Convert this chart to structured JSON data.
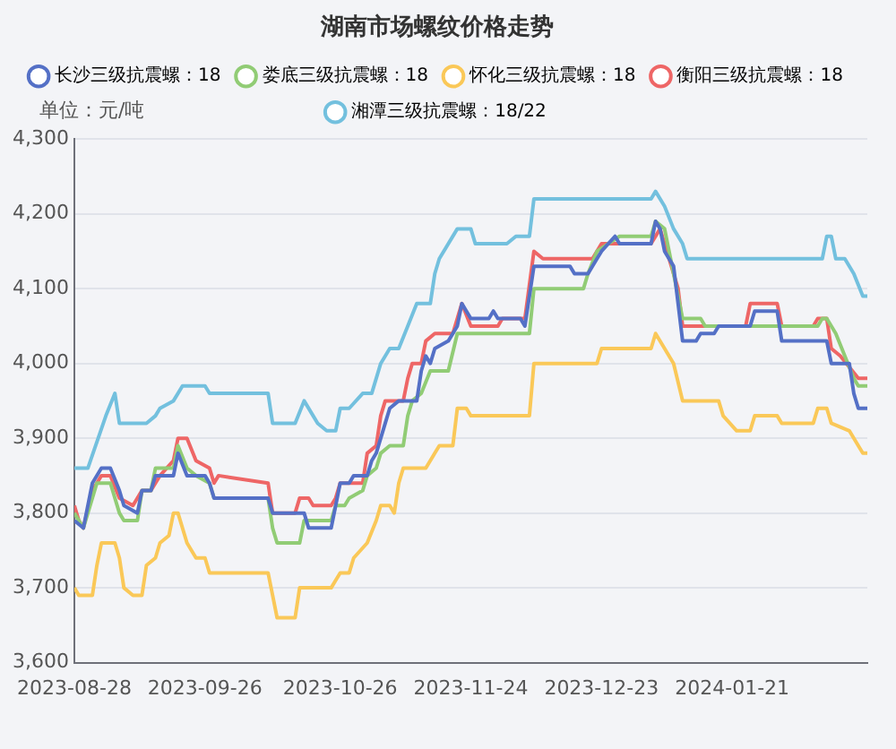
{
  "chart_data": {
    "type": "line",
    "title": "湖南市场螺纹价格走势",
    "ylabel": "单位：元/吨",
    "xlim": [
      "2023-08-28",
      "2024-02-20"
    ],
    "xticks": [
      "2023-08-28",
      "2023-09-26",
      "2023-10-26",
      "2023-11-24",
      "2023-12-23",
      "2024-01-21"
    ],
    "ylim": [
      3600,
      4300
    ],
    "yticks": [
      {
        "value": 3600,
        "label": "3,600"
      },
      {
        "value": 3700,
        "label": "3,700"
      },
      {
        "value": 3800,
        "label": "3,800"
      },
      {
        "value": 3900,
        "label": "3,900"
      },
      {
        "value": 4000,
        "label": "4,000"
      },
      {
        "value": 4100,
        "label": "4,100"
      },
      {
        "value": 4200,
        "label": "4,200"
      },
      {
        "value": 4300,
        "label": "4,300"
      }
    ],
    "grid": "y",
    "legend": "top",
    "marker": "none",
    "line_style": "solid",
    "series": [
      {
        "name": "长沙三级抗震螺：18",
        "color": "#5470c6",
        "x": [
          "2023-08-28",
          "2023-08-30",
          "2023-09-01",
          "2023-09-03",
          "2023-09-05",
          "2023-09-07",
          "2023-09-08",
          "2023-09-11",
          "2023-09-12",
          "2023-09-14",
          "2023-09-15",
          "2023-09-19",
          "2023-09-20",
          "2023-09-22",
          "2023-09-26",
          "2023-09-27",
          "2023-09-28",
          "2023-10-10",
          "2023-10-11",
          "2023-10-18",
          "2023-10-19",
          "2023-10-24",
          "2023-10-25",
          "2023-10-26",
          "2023-10-28",
          "2023-10-29",
          "2023-11-01",
          "2023-11-02",
          "2023-11-03",
          "2023-11-05",
          "2023-11-06",
          "2023-11-08",
          "2023-11-12",
          "2023-11-13",
          "2023-11-14",
          "2023-11-15",
          "2023-11-16",
          "2023-11-19",
          "2023-11-21",
          "2023-11-22",
          "2023-11-24",
          "2023-11-28",
          "2023-11-29",
          "2023-11-30",
          "2023-12-05",
          "2023-12-06",
          "2023-12-08",
          "2023-12-16",
          "2023-12-17",
          "2023-12-20",
          "2023-12-22",
          "2023-12-23",
          "2023-12-26",
          "2023-12-27",
          "2024-01-03",
          "2024-01-04",
          "2024-01-05",
          "2024-01-06",
          "2024-01-08",
          "2024-01-10",
          "2024-01-13",
          "2024-01-14",
          "2024-01-17",
          "2024-01-18",
          "2024-01-25",
          "2024-01-26",
          "2024-01-31",
          "2024-02-01",
          "2024-02-11",
          "2024-02-12",
          "2024-02-16",
          "2024-02-17",
          "2024-02-18",
          "2024-02-20"
        ],
        "values": [
          3790,
          3780,
          3840,
          3860,
          3860,
          3830,
          3810,
          3800,
          3830,
          3830,
          3850,
          3850,
          3880,
          3850,
          3850,
          3840,
          3820,
          3820,
          3800,
          3800,
          3780,
          3780,
          3810,
          3840,
          3840,
          3850,
          3850,
          3870,
          3880,
          3920,
          3940,
          3950,
          3950,
          3990,
          4010,
          4000,
          4020,
          4030,
          4050,
          4080,
          4060,
          4060,
          4070,
          4060,
          4060,
          4050,
          4130,
          4130,
          4120,
          4120,
          4140,
          4150,
          4170,
          4160,
          4160,
          4190,
          4180,
          4150,
          4130,
          4030,
          4030,
          4040,
          4040,
          4050,
          4050,
          4070,
          4070,
          4030,
          4030,
          4000,
          4000,
          3960,
          3940,
          3940
        ]
      },
      {
        "name": "娄底三级抗震螺：18",
        "color": "#91cc75",
        "x": [
          "2023-08-28",
          "2023-08-29",
          "2023-08-30",
          "2023-09-01",
          "2023-09-02",
          "2023-09-05",
          "2023-09-07",
          "2023-09-08",
          "2023-09-11",
          "2023-09-12",
          "2023-09-14",
          "2023-09-15",
          "2023-09-19",
          "2023-09-20",
          "2023-09-22",
          "2023-09-24",
          "2023-09-27",
          "2023-09-28",
          "2023-10-10",
          "2023-10-11",
          "2023-10-12",
          "2023-10-17",
          "2023-10-18",
          "2023-10-24",
          "2023-10-25",
          "2023-10-27",
          "2023-10-28",
          "2023-10-31",
          "2023-11-01",
          "2023-11-03",
          "2023-11-04",
          "2023-11-06",
          "2023-11-09",
          "2023-11-10",
          "2023-11-11",
          "2023-11-13",
          "2023-11-15",
          "2023-11-19",
          "2023-11-21",
          "2023-12-07",
          "2023-12-08",
          "2023-12-19",
          "2023-12-20",
          "2023-12-22",
          "2023-12-27",
          "2024-01-03",
          "2024-01-04",
          "2024-01-06",
          "2024-01-08",
          "2024-01-10",
          "2024-01-14",
          "2024-01-15",
          "2024-02-09",
          "2024-02-10",
          "2024-02-11",
          "2024-02-13",
          "2024-02-17",
          "2024-02-18",
          "2024-02-20"
        ],
        "values": [
          3800,
          3790,
          3780,
          3820,
          3840,
          3840,
          3800,
          3790,
          3790,
          3830,
          3830,
          3860,
          3860,
          3890,
          3860,
          3850,
          3840,
          3820,
          3820,
          3780,
          3760,
          3760,
          3790,
          3790,
          3810,
          3810,
          3820,
          3830,
          3850,
          3860,
          3880,
          3890,
          3890,
          3930,
          3950,
          3960,
          3990,
          3990,
          4040,
          4040,
          4100,
          4100,
          4120,
          4150,
          4170,
          4170,
          4190,
          4180,
          4120,
          4060,
          4060,
          4050,
          4050,
          4060,
          4060,
          4040,
          3980,
          3970,
          3970
        ]
      },
      {
        "name": "怀化三级抗震螺：18",
        "color": "#fac858",
        "x": [
          "2023-08-28",
          "2023-08-29",
          "2023-09-01",
          "2023-09-02",
          "2023-09-03",
          "2023-09-06",
          "2023-09-07",
          "2023-09-08",
          "2023-09-10",
          "2023-09-12",
          "2023-09-13",
          "2023-09-15",
          "2023-09-16",
          "2023-09-18",
          "2023-09-19",
          "2023-09-20",
          "2023-09-22",
          "2023-09-24",
          "2023-09-26",
          "2023-09-27",
          "2023-10-10",
          "2023-10-11",
          "2023-10-12",
          "2023-10-16",
          "2023-10-17",
          "2023-10-24",
          "2023-10-25",
          "2023-10-26",
          "2023-10-28",
          "2023-10-29",
          "2023-11-01",
          "2023-11-03",
          "2023-11-04",
          "2023-11-06",
          "2023-11-07",
          "2023-11-08",
          "2023-11-09",
          "2023-11-14",
          "2023-11-16",
          "2023-11-17",
          "2023-11-20",
          "2023-11-21",
          "2023-11-23",
          "2023-11-24",
          "2023-12-07",
          "2023-12-08",
          "2023-12-22",
          "2023-12-23",
          "2024-01-03",
          "2024-01-04",
          "2024-01-06",
          "2024-01-08",
          "2024-01-10",
          "2024-01-18",
          "2024-01-19",
          "2024-01-22",
          "2024-01-25",
          "2024-01-26",
          "2024-01-31",
          "2024-02-01",
          "2024-02-08",
          "2024-02-09",
          "2024-02-11",
          "2024-02-12",
          "2024-02-16",
          "2024-02-18",
          "2024-02-19",
          "2024-02-20"
        ],
        "values": [
          3700,
          3690,
          3690,
          3730,
          3760,
          3760,
          3740,
          3700,
          3690,
          3690,
          3730,
          3740,
          3760,
          3770,
          3800,
          3800,
          3760,
          3740,
          3740,
          3720,
          3720,
          3690,
          3660,
          3660,
          3700,
          3700,
          3710,
          3720,
          3720,
          3740,
          3760,
          3790,
          3810,
          3810,
          3800,
          3840,
          3860,
          3860,
          3880,
          3890,
          3890,
          3940,
          3940,
          3930,
          3930,
          4000,
          4000,
          4020,
          4020,
          4040,
          4020,
          4000,
          3950,
          3950,
          3930,
          3910,
          3910,
          3930,
          3930,
          3920,
          3920,
          3940,
          3940,
          3920,
          3910,
          3890,
          3880,
          3880
        ]
      },
      {
        "name": "衡阳三级抗震螺：18",
        "color": "#ee6666",
        "x": [
          "2023-08-28",
          "2023-08-29",
          "2023-08-30",
          "2023-09-01",
          "2023-09-03",
          "2023-09-05",
          "2023-09-07",
          "2023-09-10",
          "2023-09-12",
          "2023-09-14",
          "2023-09-16",
          "2023-09-19",
          "2023-09-20",
          "2023-09-22",
          "2023-09-24",
          "2023-09-27",
          "2023-09-28",
          "2023-09-29",
          "2023-10-10",
          "2023-10-11",
          "2023-10-16",
          "2023-10-17",
          "2023-10-19",
          "2023-10-20",
          "2023-10-24",
          "2023-10-25",
          "2023-10-26",
          "2023-10-31",
          "2023-11-01",
          "2023-11-03",
          "2023-11-04",
          "2023-11-05",
          "2023-11-09",
          "2023-11-10",
          "2023-11-11",
          "2023-11-13",
          "2023-11-14",
          "2023-11-16",
          "2023-11-20",
          "2023-11-22",
          "2023-11-24",
          "2023-11-30",
          "2023-12-01",
          "2023-12-06",
          "2023-12-08",
          "2023-12-10",
          "2023-12-21",
          "2023-12-23",
          "2024-01-03",
          "2024-01-05",
          "2024-01-07",
          "2024-01-09",
          "2024-01-10",
          "2024-01-24",
          "2024-01-25",
          "2024-01-31",
          "2024-02-01",
          "2024-02-08",
          "2024-02-09",
          "2024-02-11",
          "2024-02-12",
          "2024-02-14",
          "2024-02-18",
          "2024-02-20"
        ],
        "values": [
          3810,
          3790,
          3780,
          3830,
          3850,
          3850,
          3820,
          3810,
          3830,
          3830,
          3850,
          3870,
          3900,
          3900,
          3870,
          3860,
          3840,
          3850,
          3840,
          3800,
          3800,
          3820,
          3820,
          3810,
          3810,
          3820,
          3840,
          3840,
          3880,
          3890,
          3930,
          3950,
          3950,
          3980,
          4000,
          4000,
          4030,
          4040,
          4040,
          4080,
          4050,
          4050,
          4060,
          4060,
          4150,
          4140,
          4140,
          4160,
          4160,
          4180,
          4140,
          4100,
          4050,
          4050,
          4080,
          4080,
          4050,
          4050,
          4060,
          4060,
          4020,
          4010,
          3980,
          3980
        ]
      },
      {
        "name": "湘潭三级抗震螺：18/22",
        "color": "#73c0de",
        "x": [
          "2023-08-28",
          "2023-08-31",
          "2023-09-04",
          "2023-09-06",
          "2023-09-07",
          "2023-09-13",
          "2023-09-15",
          "2023-09-16",
          "2023-09-19",
          "2023-09-21",
          "2023-09-26",
          "2023-09-27",
          "2023-10-10",
          "2023-10-11",
          "2023-10-16",
          "2023-10-18",
          "2023-10-20",
          "2023-10-21",
          "2023-10-23",
          "2023-10-25",
          "2023-10-26",
          "2023-10-28",
          "2023-10-31",
          "2023-11-02",
          "2023-11-04",
          "2023-11-06",
          "2023-11-08",
          "2023-11-10",
          "2023-11-12",
          "2023-11-15",
          "2023-11-16",
          "2023-11-17",
          "2023-11-21",
          "2023-11-24",
          "2023-11-25",
          "2023-12-02",
          "2023-12-04",
          "2023-12-07",
          "2023-12-08",
          "2024-01-03",
          "2024-01-04",
          "2024-01-06",
          "2024-01-08",
          "2024-01-10",
          "2024-01-11",
          "2024-02-10",
          "2024-02-11",
          "2024-02-12",
          "2024-02-13",
          "2024-02-15",
          "2024-02-17",
          "2024-02-19",
          "2024-02-20"
        ],
        "values": [
          3860,
          3860,
          3930,
          3960,
          3920,
          3920,
          3930,
          3940,
          3950,
          3970,
          3970,
          3960,
          3960,
          3920,
          3920,
          3950,
          3930,
          3920,
          3910,
          3910,
          3940,
          3940,
          3960,
          3960,
          4000,
          4020,
          4020,
          4050,
          4080,
          4080,
          4120,
          4140,
          4180,
          4180,
          4160,
          4160,
          4170,
          4170,
          4220,
          4220,
          4230,
          4210,
          4180,
          4160,
          4140,
          4140,
          4170,
          4170,
          4140,
          4140,
          4120,
          4090,
          4090
        ]
      }
    ]
  }
}
